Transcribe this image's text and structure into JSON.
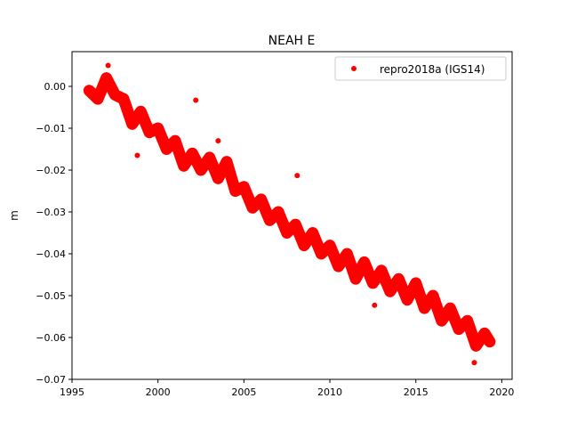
{
  "chart_data": {
    "type": "scatter",
    "title": "NEAH E",
    "xlabel": "",
    "ylabel": "m",
    "xlim": [
      1995,
      2020.6
    ],
    "ylim": [
      -0.07,
      0.0083
    ],
    "xticks": [
      1995,
      2000,
      2005,
      2010,
      2015,
      2020
    ],
    "xtick_labels": [
      "1995",
      "2000",
      "2005",
      "2010",
      "2015",
      "2020"
    ],
    "yticks": [
      0.0,
      -0.01,
      -0.02,
      -0.03,
      -0.04,
      -0.05,
      -0.06,
      -0.07
    ],
    "ytick_labels": [
      "0.00",
      "−0.01",
      "−0.02",
      "−0.03",
      "−0.04",
      "−0.05",
      "−0.06",
      "−0.07"
    ],
    "grid": false,
    "legend_position": "top-right",
    "series": [
      {
        "name": "repro2018a (IGS14)",
        "color": "#ff0000",
        "x": [
          1996.0,
          1996.5,
          1997.0,
          1997.5,
          1998.0,
          1998.5,
          1999.0,
          1999.5,
          2000.0,
          2000.5,
          2001.0,
          2001.5,
          2002.0,
          2002.5,
          2003.0,
          2003.5,
          2004.0,
          2004.5,
          2005.0,
          2005.5,
          2006.0,
          2006.5,
          2007.0,
          2007.5,
          2008.0,
          2008.5,
          2009.0,
          2009.5,
          2010.0,
          2010.5,
          2011.0,
          2011.5,
          2012.0,
          2012.5,
          2013.0,
          2013.5,
          2014.0,
          2014.5,
          2015.0,
          2015.5,
          2016.0,
          2016.5,
          2017.0,
          2017.5,
          2018.0,
          2018.5,
          2019.0,
          2019.3
        ],
        "y": [
          -0.001,
          -0.003,
          0.002,
          -0.002,
          -0.003,
          -0.009,
          -0.006,
          -0.011,
          -0.01,
          -0.015,
          -0.013,
          -0.019,
          -0.016,
          -0.02,
          -0.017,
          -0.022,
          -0.018,
          -0.025,
          -0.024,
          -0.029,
          -0.027,
          -0.032,
          -0.03,
          -0.035,
          -0.033,
          -0.038,
          -0.035,
          -0.04,
          -0.038,
          -0.043,
          -0.04,
          -0.046,
          -0.042,
          -0.047,
          -0.044,
          -0.049,
          -0.046,
          -0.051,
          -0.047,
          -0.053,
          -0.05,
          -0.056,
          -0.053,
          -0.058,
          -0.056,
          -0.062,
          -0.059,
          -0.061
        ]
      }
    ],
    "outliers": {
      "x": [
        2002.2,
        2008.1,
        1998.8,
        2012.6,
        1997.1,
        2003.5,
        2018.4
      ],
      "y": [
        -0.0033,
        -0.0213,
        -0.0165,
        -0.0523,
        0.005,
        -0.013,
        -0.066
      ]
    }
  }
}
